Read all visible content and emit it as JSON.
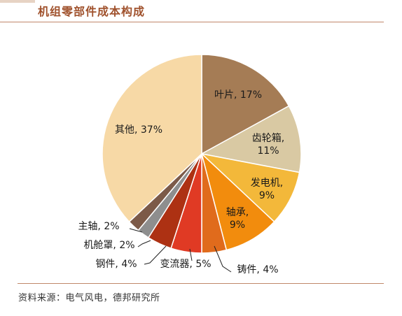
{
  "title": "机组零部件成本构成",
  "source": "资料来源：电气风电，德邦研究所",
  "chart_data": {
    "type": "pie",
    "title": "机组零部件成本构成",
    "unit": "%",
    "slices": [
      {
        "label": "叶片",
        "value": 17,
        "text": "17%",
        "color": "#a57c55"
      },
      {
        "label": "齿轮箱",
        "value": 11,
        "text": "11%",
        "color": "#d9c9a3"
      },
      {
        "label": "发电机",
        "value": 9,
        "text": "9%",
        "color": "#f3b83a"
      },
      {
        "label": "轴承",
        "value": 9,
        "text": "9%",
        "color": "#f28c0d"
      },
      {
        "label": "铸件",
        "value": 4,
        "text": "4%",
        "color": "#e06b1c"
      },
      {
        "label": "变流器",
        "value": 5,
        "text": "5%",
        "color": "#e03a24"
      },
      {
        "label": "钢件",
        "value": 4,
        "text": "4%",
        "color": "#ad3113"
      },
      {
        "label": "机舱罩",
        "value": 2,
        "text": "2%",
        "color": "#8e8e8e"
      },
      {
        "label": "主轴",
        "value": 2,
        "text": "2%",
        "color": "#7c5a48"
      },
      {
        "label": "其他",
        "value": 37,
        "text": "37%",
        "color": "#f7d9a6"
      }
    ]
  }
}
